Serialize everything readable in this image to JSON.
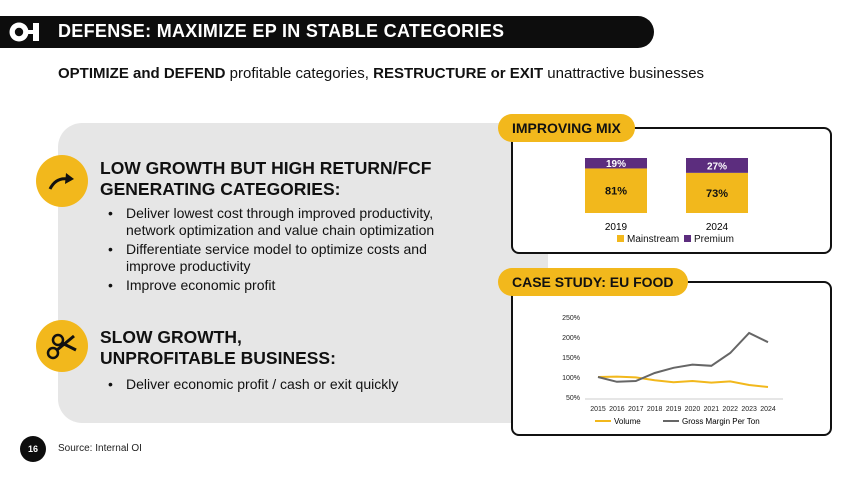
{
  "header": {
    "title": "DEFENSE:  MAXIMIZE EP IN STABLE CATEGORIES"
  },
  "subtitle": {
    "part1": "OPTIMIZE and DEFEND",
    "part2": " profitable categories, ",
    "part3": "RESTRUCTURE or EXIT",
    "part4": " unattractive businesses"
  },
  "sections": [
    {
      "heading_line1": "LOW GROWTH BUT HIGH RETURN/FCF",
      "heading_line2": "GENERATING CATEGORIES:",
      "icon": "trend-arrow-icon",
      "bullets": [
        "Deliver lowest cost through improved productivity, network optimization and value chain optimization",
        "Differentiate service model to optimize costs and improve productivity",
        "Improve economic profit"
      ]
    },
    {
      "heading_line1": "SLOW GROWTH,",
      "heading_line2": "UNPROFITABLE BUSINESS:",
      "icon": "scissors-icon",
      "bullets": [
        "Deliver economic profit / cash or exit quickly"
      ]
    }
  ],
  "colors": {
    "accent_yellow": "#f2b81c",
    "purple": "#5c2d7e",
    "gray_line": "#666666",
    "dark": "#0d0d0d"
  },
  "chart_data": [
    {
      "type": "bar",
      "title": "IMPROVING MIX",
      "categories": [
        "2019",
        "2024"
      ],
      "series": [
        {
          "name": "Mainstream",
          "values": [
            81,
            73
          ],
          "labels": [
            "81%",
            "73%"
          ]
        },
        {
          "name": "Premium",
          "values": [
            19,
            27
          ],
          "labels": [
            "19%",
            "27%"
          ]
        }
      ],
      "stacked": true,
      "legend": "bottom"
    },
    {
      "type": "line",
      "title": "CASE STUDY: EU FOOD",
      "x": [
        "2015",
        "2016",
        "2017",
        "2018",
        "2019",
        "2020",
        "2021",
        "2022",
        "2023",
        "2024"
      ],
      "series": [
        {
          "name": "Volume",
          "values": [
            100,
            101,
            99,
            92,
            87,
            90,
            86,
            89,
            80,
            75
          ]
        },
        {
          "name": "Gross Margin Per Ton",
          "values": [
            100,
            88,
            90,
            110,
            123,
            131,
            128,
            160,
            210,
            187
          ]
        }
      ],
      "yticks": [
        "250%",
        "200%",
        "150%",
        "100%",
        "50%"
      ],
      "ylim": [
        50,
        250
      ],
      "legend": "bottom"
    }
  ],
  "footer": {
    "page_number": "16",
    "source": "Source: Internal OI"
  }
}
